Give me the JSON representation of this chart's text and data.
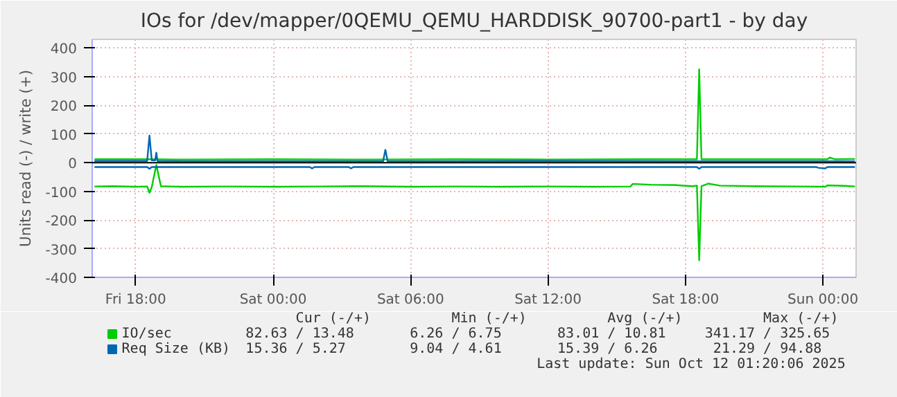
{
  "chart_data": {
    "type": "line",
    "title": "IOs for /dev/mapper/0QEMU_QEMU_HARDDISK_90700-part1 - by day",
    "ylabel": "Units read (-) / write (+)",
    "xlim": [
      "2025-10-10T16:06",
      "2025-10-12T01:27"
    ],
    "xticks": [
      {
        "value": "2025-10-10T18:00",
        "label": "Fri 18:00"
      },
      {
        "value": "2025-10-11T00:00",
        "label": "Sat 00:00"
      },
      {
        "value": "2025-10-11T06:00",
        "label": "Sat 06:00"
      },
      {
        "value": "2025-10-11T12:00",
        "label": "Sat 12:00"
      },
      {
        "value": "2025-10-11T18:00",
        "label": "Sat 18:00"
      },
      {
        "value": "2025-10-12T00:00",
        "label": "Sun 00:00"
      }
    ],
    "ylim": [
      -400,
      430
    ],
    "yticks": [
      -400,
      -300,
      -200,
      -100,
      0,
      100,
      200,
      300,
      400
    ],
    "grid": true,
    "legend": "bottom",
    "line_style": "solid",
    "ref_lines": [
      {
        "axis": "y",
        "value": 0,
        "label": null,
        "color": "#000000"
      }
    ],
    "series": [
      {
        "name": "IO/sec",
        "color": "#00cc00",
        "x": [
          "2025-10-10T16:12",
          "2025-10-10T17:30",
          "2025-10-10T18:30",
          "2025-10-10T18:36",
          "2025-10-10T18:42",
          "2025-10-10T20:00",
          "2025-10-11T00:00",
          "2025-10-11T04:00",
          "2025-10-11T08:00",
          "2025-10-11T12:00",
          "2025-10-11T16:00",
          "2025-10-11T18:30",
          "2025-10-11T18:36",
          "2025-10-11T18:42",
          "2025-10-11T21:00",
          "2025-10-12T00:12",
          "2025-10-12T00:18",
          "2025-10-12T00:30",
          "2025-10-12T01:24"
        ],
        "values": [
          12,
          12,
          12,
          12,
          12,
          11,
          12,
          11,
          12,
          11,
          12,
          12,
          326,
          12,
          12,
          12,
          18,
          12,
          13
        ]
      },
      {
        "color": "#00cc00",
        "x": [
          "2025-10-10T16:12",
          "2025-10-10T17:00",
          "2025-10-10T18:00",
          "2025-10-10T18:30",
          "2025-10-10T18:36",
          "2025-10-10T18:42",
          "2025-10-10T18:54",
          "2025-10-10T19:06",
          "2025-10-10T20:00",
          "2025-10-10T22:00",
          "2025-10-11T00:00",
          "2025-10-11T02:00",
          "2025-10-11T04:00",
          "2025-10-11T06:00",
          "2025-10-11T08:00",
          "2025-10-11T10:00",
          "2025-10-11T12:00",
          "2025-10-11T14:00",
          "2025-10-11T15:36",
          "2025-10-11T15:42",
          "2025-10-11T16:30",
          "2025-10-11T17:30",
          "2025-10-11T18:18",
          "2025-10-11T18:30",
          "2025-10-11T18:36",
          "2025-10-11T18:42",
          "2025-10-11T19:00",
          "2025-10-11T19:30",
          "2025-10-11T21:00",
          "2025-10-11T23:00",
          "2025-10-12T00:06",
          "2025-10-12T00:12",
          "2025-10-12T01:00",
          "2025-10-12T01:24"
        ],
        "values": [
          -83,
          -82,
          -84,
          -83,
          -105,
          -85,
          -8,
          -82,
          -84,
          -83,
          -84,
          -83,
          -82,
          -84,
          -83,
          -84,
          -83,
          -84,
          -83,
          -74,
          -77,
          -78,
          -82,
          -80,
          -341,
          -82,
          -73,
          -80,
          -82,
          -83,
          -84,
          -79,
          -81,
          -83
        ]
      },
      {
        "name": "Req Size (KB)",
        "color": "#0066b3",
        "x": [
          "2025-10-10T16:12",
          "2025-10-10T18:30",
          "2025-10-10T18:36",
          "2025-10-10T18:42",
          "2025-10-10T18:51",
          "2025-10-10T18:54",
          "2025-10-10T18:57",
          "2025-10-10T20:00",
          "2025-10-11T00:00",
          "2025-10-11T04:48",
          "2025-10-11T04:54",
          "2025-10-11T05:00",
          "2025-10-11T08:00",
          "2025-10-11T12:00",
          "2025-10-11T18:00",
          "2025-10-11T22:00",
          "2025-10-12T01:24"
        ],
        "values": [
          6,
          6,
          95,
          8,
          8,
          35,
          6,
          5,
          5,
          5,
          45,
          5,
          5,
          6,
          5,
          5,
          5
        ]
      },
      {
        "color": "#0066b3",
        "x": [
          "2025-10-10T16:12",
          "2025-10-10T18:30",
          "2025-10-10T18:36",
          "2025-10-10T18:42",
          "2025-10-10T22:00",
          "2025-10-11T01:36",
          "2025-10-11T01:42",
          "2025-10-11T01:48",
          "2025-10-11T03:18",
          "2025-10-11T03:24",
          "2025-10-11T03:30",
          "2025-10-11T12:00",
          "2025-10-11T16:30",
          "2025-10-11T18:30",
          "2025-10-11T18:36",
          "2025-10-11T18:42",
          "2025-10-11T23:42",
          "2025-10-11T23:48",
          "2025-10-12T00:06",
          "2025-10-12T00:12",
          "2025-10-12T01:24"
        ],
        "values": [
          -15,
          -15,
          -21,
          -15,
          -15,
          -15,
          -20,
          -15,
          -15,
          -20,
          -15,
          -15,
          -15,
          -15,
          -21,
          -15,
          -15,
          -18,
          -20,
          -15,
          -15
        ]
      }
    ],
    "annotations": [
      "Cur (-/+)",
      "Min (-/+)",
      "Avg (-/+)",
      "Max (-/+)",
      "82.63 /   13.48",
      "6.26 /    6.75",
      "83.01 /   10.81",
      "341.17 /  325.65",
      "15.36 /    5.27",
      "9.04 /    4.61",
      "15.39 /    6.26",
      "21.29 /   94.88",
      "Last update: Sun Oct 12 01:20:06 2025"
    ]
  }
}
